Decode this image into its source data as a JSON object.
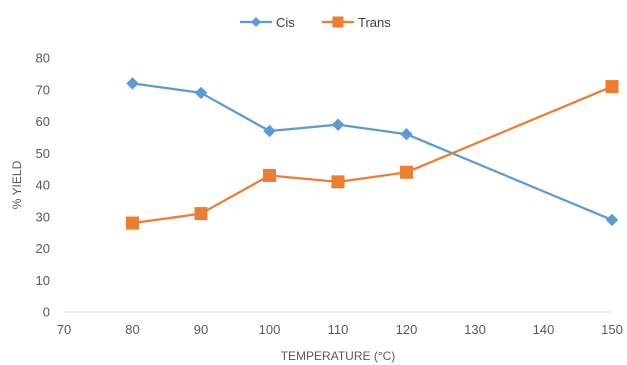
{
  "chart_data": {
    "type": "line",
    "title": "",
    "xlabel": "TEMPERATURE (°C)",
    "ylabel": "% YIELD",
    "xlim": [
      70,
      150
    ],
    "ylim": [
      0,
      80
    ],
    "xticks": [
      70,
      80,
      90,
      100,
      110,
      120,
      130,
      140,
      150
    ],
    "yticks": [
      0,
      10,
      20,
      30,
      40,
      50,
      60,
      70,
      80
    ],
    "grid": false,
    "legend": "top-center",
    "x": [
      80,
      90,
      100,
      110,
      120,
      150
    ],
    "series": [
      {
        "name": "Cis",
        "color": "#5B9BD5",
        "marker": "diamond",
        "values": [
          72,
          69,
          57,
          59,
          56,
          29
        ]
      },
      {
        "name": "Trans",
        "color": "#ED7D31",
        "marker": "square",
        "values": [
          28,
          31,
          43,
          41,
          44,
          71
        ]
      }
    ]
  }
}
